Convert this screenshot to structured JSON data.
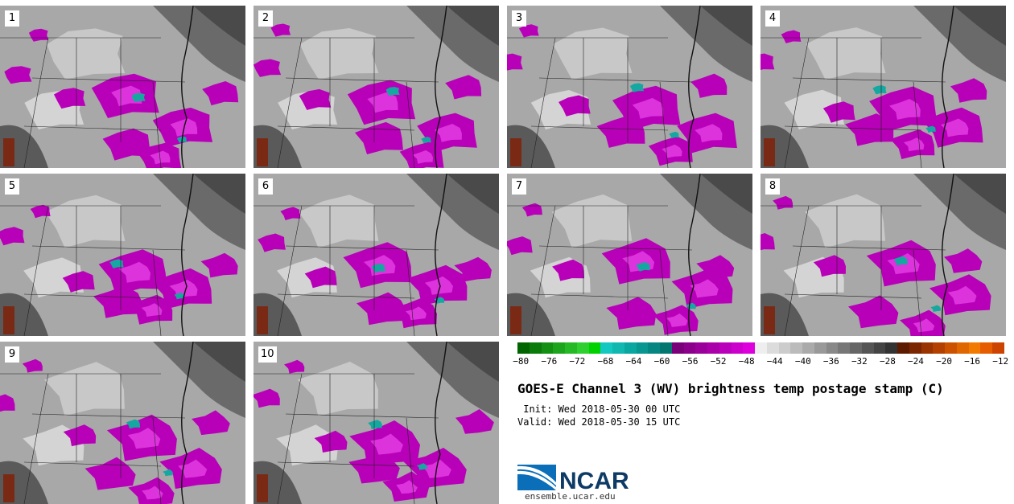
{
  "panels": [
    {
      "label": "1"
    },
    {
      "label": "2"
    },
    {
      "label": "3"
    },
    {
      "label": "4"
    },
    {
      "label": "5"
    },
    {
      "label": "6"
    },
    {
      "label": "7"
    },
    {
      "label": "8"
    },
    {
      "label": "9"
    },
    {
      "label": "10"
    }
  ],
  "colorbar": {
    "ticks": [
      "−80",
      "−76",
      "−72",
      "−68",
      "−64",
      "−60",
      "−56",
      "−52",
      "−48",
      "−44",
      "−40",
      "−36",
      "−32",
      "−28",
      "−24",
      "−20",
      "−16",
      "−12"
    ],
    "colors": [
      "#006400",
      "#0a7a0a",
      "#138f13",
      "#1ca41c",
      "#25b925",
      "#2fcf2f",
      "#00d200",
      "#12c8c0",
      "#10b8b0",
      "#0aa6a0",
      "#089690",
      "#068680",
      "#047670",
      "#7a007a",
      "#8a008a",
      "#9a009a",
      "#aa00aa",
      "#bb00bb",
      "#cc00cc",
      "#dd00dd",
      "#eeeeee",
      "#dcdcdc",
      "#cccccc",
      "#bbbbbb",
      "#aaaaaa",
      "#999999",
      "#888888",
      "#777777",
      "#666666",
      "#555555",
      "#444444",
      "#333333",
      "#5c1a00",
      "#7a2600",
      "#993300",
      "#b34000",
      "#cc5200",
      "#e06600",
      "#f27a00",
      "#e65c00",
      "#cc4400"
    ]
  },
  "title": "GOES-E Channel 3 (WV) brightness temp postage stamp (C)",
  "init": " Init: Wed 2018-05-30 00 UTC",
  "valid": "Valid: Wed 2018-05-30 15 UTC",
  "logo": {
    "text": "NCAR",
    "url": "ensemble.ucar.edu"
  }
}
